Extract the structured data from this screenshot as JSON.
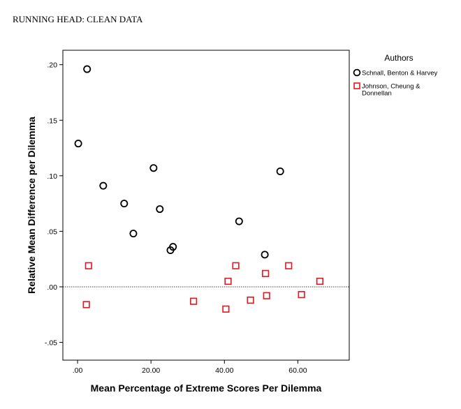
{
  "header": {
    "running_head": "RUNNING HEAD: CLEAN DATA"
  },
  "chart_data": {
    "type": "scatter",
    "xlabel": "Mean Percentage of Extreme Scores Per Dilemma",
    "ylabel": "Relative Mean Difference per Dilemma",
    "xlim": [
      -4,
      74
    ],
    "ylim": [
      -0.066,
      0.213
    ],
    "x_ticks": [
      {
        "value": 0,
        "label": ".00"
      },
      {
        "value": 20,
        "label": "20.00"
      },
      {
        "value": 40,
        "label": "40.00"
      },
      {
        "value": 60,
        "label": "60.00"
      }
    ],
    "y_ticks": [
      {
        "value": 0.2,
        "label": ".20"
      },
      {
        "value": 0.15,
        "label": ".15"
      },
      {
        "value": 0.1,
        "label": ".10"
      },
      {
        "value": 0.05,
        "label": ".05"
      },
      {
        "value": 0.0,
        "label": ".00"
      },
      {
        "value": -0.05,
        "label": "-.05"
      }
    ],
    "reference_line_y": 0,
    "grid": false,
    "legend_position": "outside-right",
    "legend_title": "Authors",
    "series": [
      {
        "name": "Schnall, Benton & Harvey",
        "marker": "circle",
        "color": "#000000",
        "points": [
          [
            2.6,
            0.196
          ],
          [
            0.2,
            0.129
          ],
          [
            7.0,
            0.091
          ],
          [
            12.7,
            0.075
          ],
          [
            15.2,
            0.048
          ],
          [
            20.7,
            0.107
          ],
          [
            22.4,
            0.07
          ],
          [
            25.3,
            0.033
          ],
          [
            26.0,
            0.036
          ],
          [
            44.0,
            0.059
          ],
          [
            51.0,
            0.029
          ],
          [
            55.2,
            0.104
          ]
        ]
      },
      {
        "name": "Johnson, Cheung &\nDonnellan",
        "marker": "square",
        "color": "#e8141b",
        "points": [
          [
            3.0,
            0.019
          ],
          [
            2.4,
            -0.016
          ],
          [
            31.6,
            -0.013
          ],
          [
            40.4,
            -0.02
          ],
          [
            41.0,
            0.005
          ],
          [
            43.1,
            0.019
          ],
          [
            47.1,
            -0.012
          ],
          [
            51.2,
            0.012
          ],
          [
            51.5,
            -0.008
          ],
          [
            57.5,
            0.019
          ],
          [
            61.0,
            -0.007
          ],
          [
            66.0,
            0.005
          ]
        ]
      }
    ]
  }
}
